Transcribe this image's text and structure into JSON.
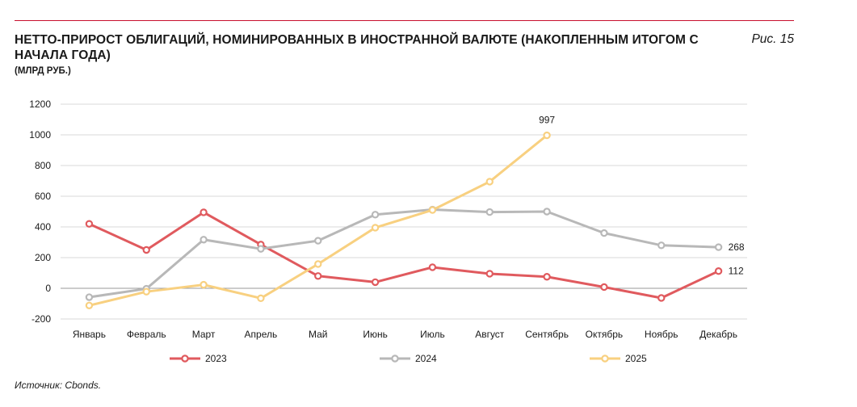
{
  "header": {
    "title": "НЕТТО-ПРИРОСТ ОБЛИГАЦИЙ, НОМИНИРОВАННЫХ В ИНОСТРАННОЙ ВАЛЮТЕ (НАКОПЛЕННЫМ ИТОГОМ С НАЧАЛА ГОДА)",
    "subtitle": "(МЛРД РУБ.)",
    "figure_label": "Рис. 15"
  },
  "footer": {
    "source": "Источник: Cbonds."
  },
  "chart_data": {
    "type": "line",
    "categories": [
      "Январь",
      "Февраль",
      "Март",
      "Апрель",
      "Май",
      "Июнь",
      "Июль",
      "Август",
      "Сентябрь",
      "Октябрь",
      "Ноябрь",
      "Декабрь"
    ],
    "ylim": [
      -200,
      1200
    ],
    "yticks": [
      -200,
      0,
      200,
      400,
      600,
      800,
      1000,
      1200
    ],
    "grid": true,
    "legend": "bottom",
    "series": [
      {
        "name": "2023",
        "color": "#e05a5e",
        "values": [
          420,
          250,
          495,
          285,
          80,
          40,
          137,
          95,
          75,
          8,
          -63,
          112
        ]
      },
      {
        "name": "2024",
        "color": "#b8b8b8",
        "values": [
          -58,
          -3,
          317,
          257,
          310,
          480,
          513,
          497,
          500,
          360,
          280,
          268
        ]
      },
      {
        "name": "2025",
        "color": "#f8d080",
        "values": [
          -112,
          -22,
          23,
          -65,
          158,
          395,
          510,
          695,
          997,
          null,
          null,
          null
        ]
      }
    ],
    "annotations": [
      {
        "series": "2025",
        "index": 8,
        "text": "997",
        "position": "above"
      },
      {
        "series": "2024",
        "index": 11,
        "text": "268",
        "position": "right"
      },
      {
        "series": "2023",
        "index": 11,
        "text": "112",
        "position": "right"
      }
    ]
  }
}
